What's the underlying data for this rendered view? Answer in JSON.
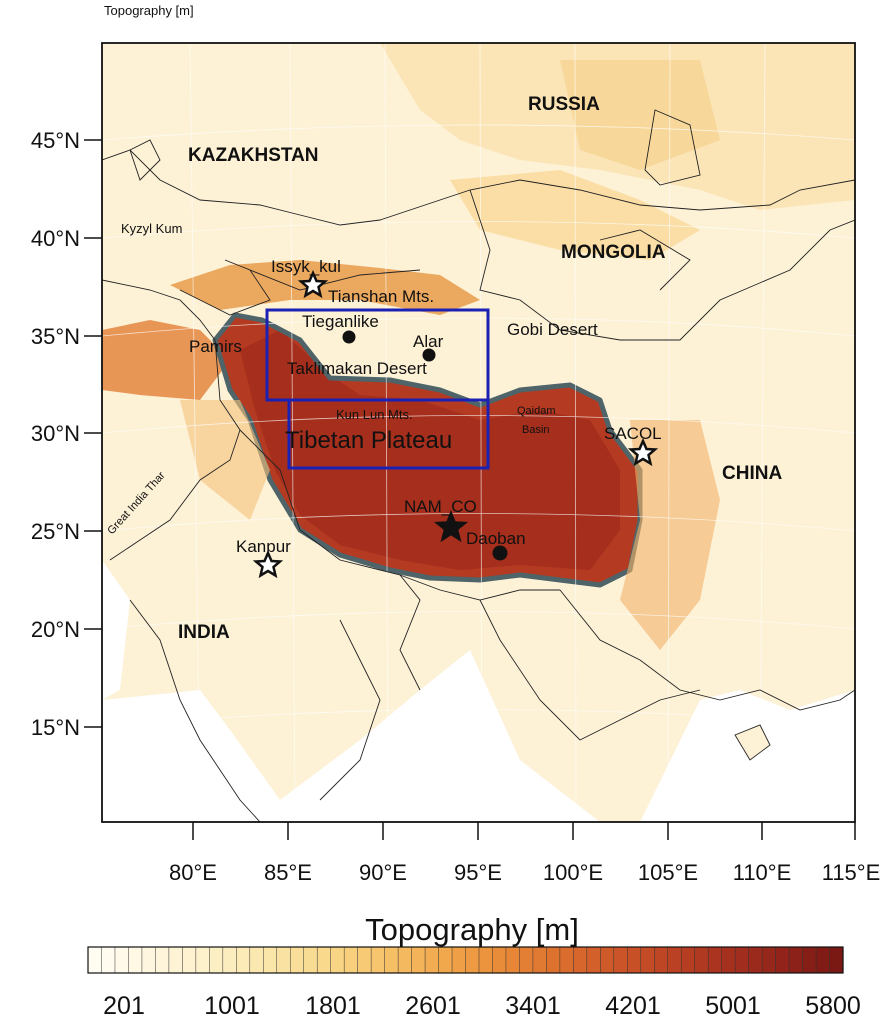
{
  "figure_title": "Topography [m]",
  "colorbar": {
    "title": "Topography [m]",
    "labels": [
      "201",
      "1001",
      "1801",
      "2601",
      "3401",
      "4201",
      "5001",
      "5800"
    ],
    "colors": [
      "#fffcf2",
      "#fff6df",
      "#fdf0c8",
      "#fbe7ac",
      "#f9d98d",
      "#f6c46c",
      "#f2ab4f",
      "#ea8f3a",
      "#de732f",
      "#cf5a29",
      "#bd4424",
      "#a8321f",
      "#92241a",
      "#7a1813"
    ]
  },
  "axes": {
    "lat_ticks": [
      "45°N",
      "40°N",
      "35°N",
      "30°N",
      "25°N",
      "20°N",
      "15°N"
    ],
    "lon_ticks": [
      "80°E",
      "85°E",
      "90°E",
      "95°E",
      "100°E",
      "105°E",
      "110°E",
      "115°E"
    ]
  },
  "labels": {
    "russia": "RUSSIA",
    "kazakhstan": "KAZAKHSTAN",
    "mongolia": "MONGOLIA",
    "china": "CHINA",
    "india": "INDIA",
    "kyzyl_kum": "Kyzyl Kum",
    "issyk_kul": "Issyk_kul",
    "tianshan": "Tianshan Mts.",
    "tieganlike": "Tieganlike",
    "alar": "Alar",
    "gobi": "Gobi Desert",
    "pamirs": "Pamirs",
    "taklimakan": "Taklimakan Desert",
    "kunlun": "Kun Lun Mts.",
    "qaidam_1": "Qaidam",
    "qaidam_2": "Basin",
    "tibetan_plateau": "Tibetan Plateau",
    "sacol": "SACOL",
    "nam_co": "NAM_CO",
    "daoban": "Daoban",
    "kanpur": "Kanpur",
    "great_india_thar": "Great India Thar"
  }
}
